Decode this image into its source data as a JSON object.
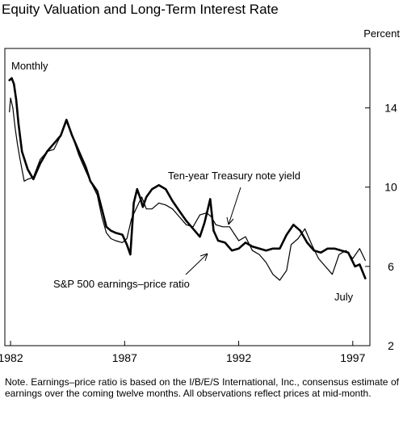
{
  "title": "Equity Valuation and Long-Term Interest Rate",
  "unit": "Percent",
  "frequency": "Monthly",
  "note": "Note. Earnings–price ratio is based on the I/B/E/S International, Inc., consensus estimate of earnings over the coming twelve months. All observations reflect prices at mid-month.",
  "chart_data": {
    "type": "line",
    "title": "Equity Valuation and Long-Term Interest Rate",
    "ylabel": "Percent",
    "xlim": [
      1981.75,
      1997.75
    ],
    "ylim": [
      2,
      17
    ],
    "x_ticks": [
      1982,
      1987,
      1992,
      1997
    ],
    "x_tick_labels": [
      "1982",
      "1987",
      "1992",
      "1997"
    ],
    "y_ticks": [
      2,
      6,
      10,
      14
    ],
    "y_tick_labels": [
      "2",
      "6",
      "10",
      "14"
    ],
    "grid": false,
    "annotations": [
      "Monthly",
      "Ten-year Treasury note yield",
      "S&P 500 earnings–price ratio",
      "July"
    ],
    "series": [
      {
        "name": "Ten-year Treasury note yield",
        "color": "#000000",
        "x": [
          1981.95,
          1982.0,
          1982.1,
          1982.2,
          1982.3,
          1982.4,
          1982.5,
          1982.6,
          1982.75,
          1983.0,
          1983.3,
          1983.6,
          1983.9,
          1984.2,
          1984.45,
          1984.7,
          1985.0,
          1985.3,
          1985.5,
          1985.8,
          1986.0,
          1986.2,
          1986.4,
          1986.6,
          1986.9,
          1987.1,
          1987.3,
          1987.5,
          1987.75,
          1987.95,
          1988.2,
          1988.5,
          1988.8,
          1989.1,
          1989.4,
          1989.7,
          1990.0,
          1990.3,
          1990.6,
          1990.8,
          1991.0,
          1991.3,
          1991.6,
          1992.0,
          1992.3,
          1992.6,
          1992.9,
          1993.2,
          1993.5,
          1993.8,
          1994.1,
          1994.3,
          1994.6,
          1994.9,
          1995.2,
          1995.5,
          1995.8,
          1996.1,
          1996.4,
          1996.7,
          1997.0,
          1997.3,
          1997.55
        ],
        "values": [
          13.8,
          14.5,
          14.0,
          13.0,
          12.2,
          11.5,
          10.9,
          10.3,
          10.4,
          10.5,
          11.4,
          11.8,
          11.9,
          12.6,
          13.3,
          12.6,
          11.6,
          10.8,
          10.3,
          9.6,
          8.5,
          7.7,
          7.4,
          7.3,
          7.2,
          7.4,
          8.4,
          8.9,
          9.5,
          8.9,
          8.9,
          9.2,
          9.1,
          8.9,
          8.5,
          8.1,
          8.0,
          8.6,
          8.7,
          8.5,
          8.1,
          8.0,
          8.0,
          7.3,
          7.5,
          6.8,
          6.6,
          6.2,
          5.6,
          5.3,
          5.8,
          7.1,
          7.4,
          7.9,
          7.1,
          6.4,
          6.0,
          5.6,
          6.6,
          6.8,
          6.4,
          6.9,
          6.3
        ]
      },
      {
        "name": "S&P 500 earnings–price ratio",
        "color": "#000000",
        "x": [
          1981.95,
          1982.05,
          1982.15,
          1982.25,
          1982.35,
          1982.5,
          1982.75,
          1983.0,
          1983.3,
          1983.6,
          1983.9,
          1984.2,
          1984.45,
          1984.7,
          1985.0,
          1985.3,
          1985.5,
          1985.8,
          1986.0,
          1986.2,
          1986.4,
          1986.6,
          1986.9,
          1987.1,
          1987.25,
          1987.4,
          1987.55,
          1987.7,
          1987.8,
          1987.95,
          1988.2,
          1988.5,
          1988.8,
          1989.1,
          1989.4,
          1989.7,
          1990.0,
          1990.3,
          1990.5,
          1990.75,
          1990.9,
          1991.1,
          1991.4,
          1991.7,
          1992.0,
          1992.3,
          1992.6,
          1992.9,
          1993.2,
          1993.5,
          1993.8,
          1994.1,
          1994.4,
          1994.7,
          1995.0,
          1995.3,
          1995.6,
          1995.9,
          1996.2,
          1996.5,
          1996.8,
          1997.1,
          1997.3,
          1997.55
        ],
        "values": [
          15.4,
          15.5,
          15.2,
          14.4,
          13.2,
          11.8,
          10.9,
          10.4,
          11.2,
          11.8,
          12.2,
          12.6,
          13.4,
          12.6,
          11.8,
          11.0,
          10.3,
          9.8,
          8.9,
          8.0,
          7.8,
          7.7,
          7.6,
          7.1,
          6.6,
          9.2,
          9.9,
          9.4,
          9.0,
          9.5,
          9.9,
          10.1,
          9.9,
          9.3,
          8.8,
          8.3,
          7.9,
          7.5,
          8.2,
          9.4,
          7.8,
          7.3,
          7.2,
          6.8,
          6.9,
          7.2,
          7.0,
          6.9,
          6.8,
          6.9,
          6.9,
          7.6,
          8.1,
          7.8,
          7.2,
          6.8,
          6.7,
          6.9,
          6.9,
          6.8,
          6.7,
          6.0,
          6.1,
          5.4
        ]
      }
    ]
  }
}
